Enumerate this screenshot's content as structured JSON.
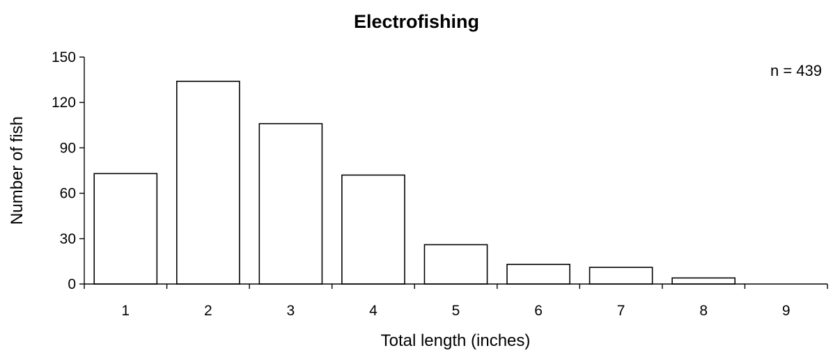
{
  "chart_data": {
    "type": "bar",
    "title": "Electrofishing",
    "xlabel": "Total length (inches)",
    "ylabel": "Number of fish",
    "categories": [
      "1",
      "2",
      "3",
      "4",
      "5",
      "6",
      "7",
      "8",
      "9"
    ],
    "values": [
      73,
      134,
      106,
      72,
      26,
      13,
      11,
      4,
      0
    ],
    "ylim": [
      0,
      150
    ],
    "yticks": [
      0,
      30,
      60,
      90,
      120,
      150
    ],
    "grid": false,
    "annotation": "n = 439",
    "bar_fill": "#ffffff",
    "bar_stroke": "#000000"
  }
}
